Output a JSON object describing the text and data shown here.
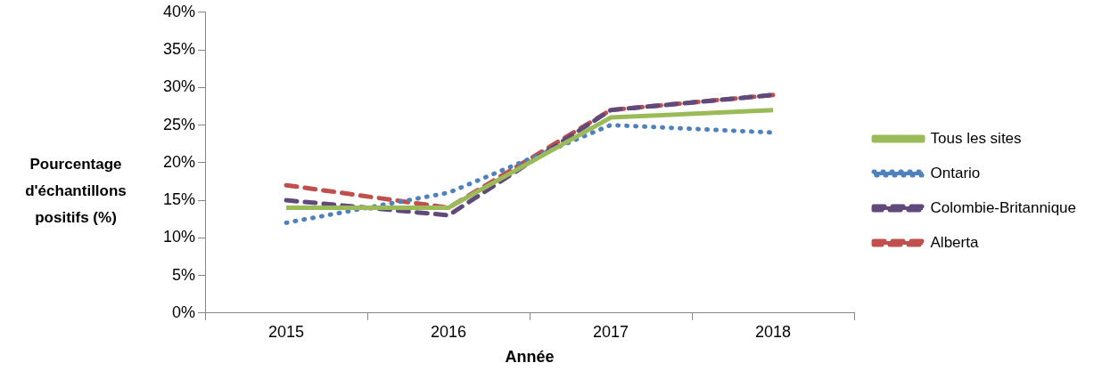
{
  "chart_data": {
    "type": "line",
    "xlabel": "Année",
    "ylabel": "Pourcentage d'échantillons positifs (%)",
    "categories": [
      "2015",
      "2016",
      "2017",
      "2018"
    ],
    "series": [
      {
        "name": "Tous les sites",
        "color": "#9bbb59",
        "line_style": "solid",
        "values": [
          14,
          14,
          26,
          27
        ]
      },
      {
        "name": "Ontario",
        "color": "#4f81bd",
        "line_style": "dotted",
        "values": [
          12,
          16,
          25,
          24
        ]
      },
      {
        "name": "Colombie-Britannique",
        "color": "#604a7b",
        "line_style": "dashed",
        "values": [
          15,
          13,
          27,
          29
        ]
      },
      {
        "name": "Alberta",
        "color": "#c0504d",
        "line_style": "dashed",
        "values": [
          17,
          14,
          27,
          29
        ]
      }
    ],
    "ylim": [
      0,
      40
    ],
    "yticks": [
      {
        "value": 0,
        "label": "0%"
      },
      {
        "value": 5,
        "label": "5%"
      },
      {
        "value": 10,
        "label": "10%"
      },
      {
        "value": 15,
        "label": "15%"
      },
      {
        "value": 20,
        "label": "20%"
      },
      {
        "value": 25,
        "label": "25%"
      },
      {
        "value": 30,
        "label": "30%"
      },
      {
        "value": 35,
        "label": "35%"
      },
      {
        "value": 40,
        "label": "40%"
      }
    ],
    "grid": false,
    "legend": "right",
    "marker": "none"
  }
}
